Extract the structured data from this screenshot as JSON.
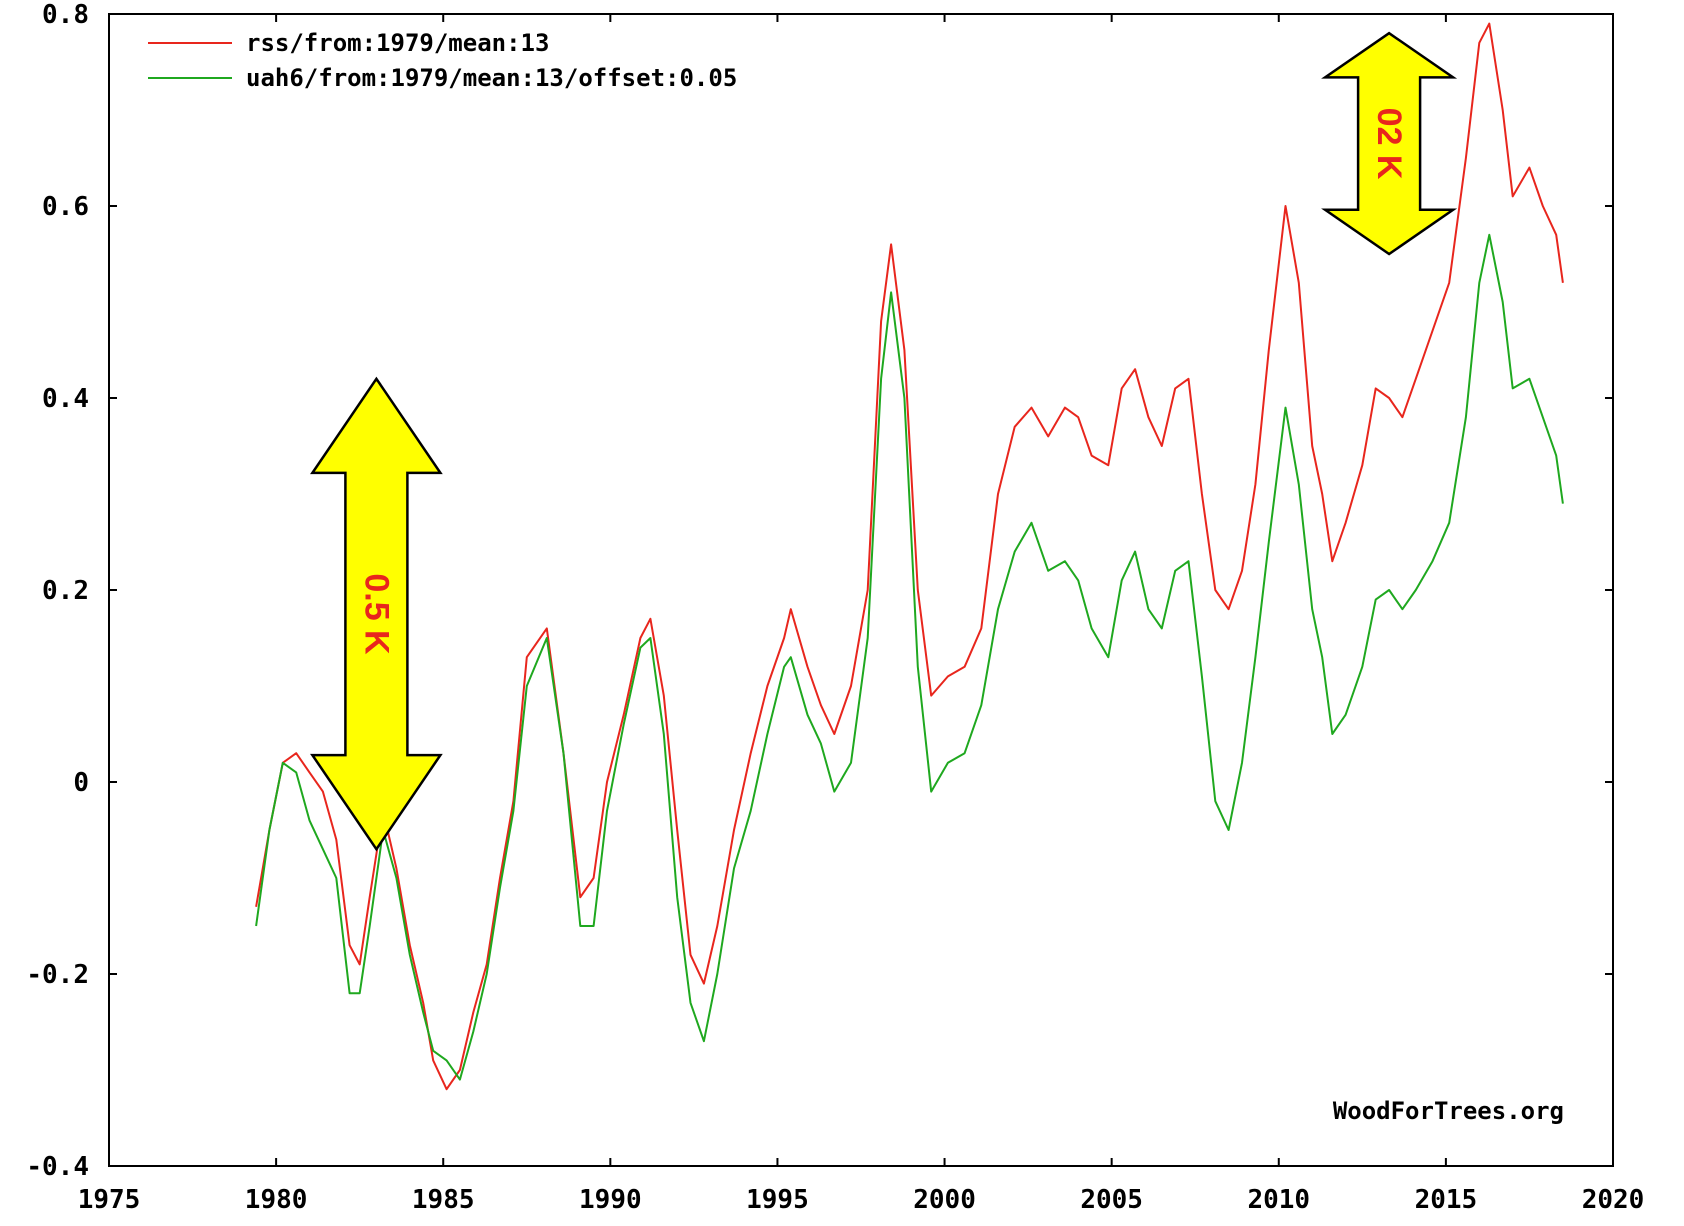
{
  "chart_data": {
    "type": "line",
    "xlim": [
      1975,
      2020
    ],
    "ylim": [
      -0.4,
      0.8
    ],
    "x_ticks": [
      "1975",
      "1980",
      "1985",
      "1990",
      "1995",
      "2000",
      "2005",
      "2010",
      "2015",
      "2020"
    ],
    "y_ticks": [
      "0.8",
      "0.6",
      "0.4",
      "0.2",
      "0",
      "-0.2",
      "-0.4"
    ],
    "legend_position": "top-left",
    "series": [
      {
        "name": "rss/from:1979/mean:13",
        "color": "#e8261d",
        "points": [
          [
            1979.4,
            -0.13
          ],
          [
            1979.8,
            -0.05
          ],
          [
            1980.2,
            0.02
          ],
          [
            1980.6,
            0.03
          ],
          [
            1981.0,
            0.01
          ],
          [
            1981.4,
            -0.01
          ],
          [
            1981.8,
            -0.06
          ],
          [
            1982.2,
            -0.17
          ],
          [
            1982.5,
            -0.19
          ],
          [
            1982.8,
            -0.12
          ],
          [
            1983.2,
            -0.03
          ],
          [
            1983.6,
            -0.09
          ],
          [
            1984.0,
            -0.17
          ],
          [
            1984.4,
            -0.23
          ],
          [
            1984.7,
            -0.29
          ],
          [
            1985.1,
            -0.32
          ],
          [
            1985.5,
            -0.3
          ],
          [
            1985.9,
            -0.24
          ],
          [
            1986.3,
            -0.19
          ],
          [
            1986.7,
            -0.1
          ],
          [
            1987.1,
            -0.02
          ],
          [
            1987.5,
            0.13
          ],
          [
            1988.1,
            0.16
          ],
          [
            1988.6,
            0.03
          ],
          [
            1989.1,
            -0.12
          ],
          [
            1989.5,
            -0.1
          ],
          [
            1989.9,
            0.0
          ],
          [
            1990.4,
            0.07
          ],
          [
            1990.9,
            0.15
          ],
          [
            1991.2,
            0.17
          ],
          [
            1991.6,
            0.09
          ],
          [
            1992.0,
            -0.05
          ],
          [
            1992.4,
            -0.18
          ],
          [
            1992.8,
            -0.21
          ],
          [
            1993.2,
            -0.15
          ],
          [
            1993.7,
            -0.05
          ],
          [
            1994.2,
            0.03
          ],
          [
            1994.7,
            0.1
          ],
          [
            1995.2,
            0.15
          ],
          [
            1995.4,
            0.18
          ],
          [
            1995.9,
            0.12
          ],
          [
            1996.3,
            0.08
          ],
          [
            1996.7,
            0.05
          ],
          [
            1997.2,
            0.1
          ],
          [
            1997.7,
            0.2
          ],
          [
            1998.1,
            0.48
          ],
          [
            1998.4,
            0.56
          ],
          [
            1998.8,
            0.45
          ],
          [
            1999.2,
            0.2
          ],
          [
            1999.6,
            0.09
          ],
          [
            2000.1,
            0.11
          ],
          [
            2000.6,
            0.12
          ],
          [
            2001.1,
            0.16
          ],
          [
            2001.6,
            0.3
          ],
          [
            2002.1,
            0.37
          ],
          [
            2002.6,
            0.39
          ],
          [
            2003.1,
            0.36
          ],
          [
            2003.6,
            0.39
          ],
          [
            2004.0,
            0.38
          ],
          [
            2004.4,
            0.34
          ],
          [
            2004.9,
            0.33
          ],
          [
            2005.3,
            0.41
          ],
          [
            2005.7,
            0.43
          ],
          [
            2006.1,
            0.38
          ],
          [
            2006.5,
            0.35
          ],
          [
            2006.9,
            0.41
          ],
          [
            2007.3,
            0.42
          ],
          [
            2007.7,
            0.3
          ],
          [
            2008.1,
            0.2
          ],
          [
            2008.5,
            0.18
          ],
          [
            2008.9,
            0.22
          ],
          [
            2009.3,
            0.31
          ],
          [
            2009.7,
            0.45
          ],
          [
            2010.2,
            0.6
          ],
          [
            2010.6,
            0.52
          ],
          [
            2011.0,
            0.35
          ],
          [
            2011.3,
            0.3
          ],
          [
            2011.6,
            0.23
          ],
          [
            2012.0,
            0.27
          ],
          [
            2012.5,
            0.33
          ],
          [
            2012.9,
            0.41
          ],
          [
            2013.3,
            0.4
          ],
          [
            2013.7,
            0.38
          ],
          [
            2014.1,
            0.42
          ],
          [
            2014.6,
            0.47
          ],
          [
            2015.1,
            0.52
          ],
          [
            2015.6,
            0.65
          ],
          [
            2016.0,
            0.77
          ],
          [
            2016.3,
            0.79
          ],
          [
            2016.7,
            0.7
          ],
          [
            2017.0,
            0.61
          ],
          [
            2017.5,
            0.64
          ],
          [
            2017.9,
            0.6
          ],
          [
            2018.3,
            0.57
          ],
          [
            2018.5,
            0.52
          ]
        ]
      },
      {
        "name": "uah6/from:1979/mean:13/offset:0.05",
        "color": "#1fa81f",
        "points": [
          [
            1979.4,
            -0.15
          ],
          [
            1979.8,
            -0.05
          ],
          [
            1980.2,
            0.02
          ],
          [
            1980.6,
            0.01
          ],
          [
            1981.0,
            -0.04
          ],
          [
            1981.4,
            -0.07
          ],
          [
            1981.8,
            -0.1
          ],
          [
            1982.2,
            -0.22
          ],
          [
            1982.5,
            -0.22
          ],
          [
            1982.8,
            -0.15
          ],
          [
            1983.2,
            -0.05
          ],
          [
            1983.6,
            -0.1
          ],
          [
            1984.0,
            -0.18
          ],
          [
            1984.4,
            -0.24
          ],
          [
            1984.7,
            -0.28
          ],
          [
            1985.1,
            -0.29
          ],
          [
            1985.5,
            -0.31
          ],
          [
            1985.9,
            -0.26
          ],
          [
            1986.3,
            -0.2
          ],
          [
            1986.7,
            -0.11
          ],
          [
            1987.1,
            -0.03
          ],
          [
            1987.5,
            0.1
          ],
          [
            1988.1,
            0.15
          ],
          [
            1988.6,
            0.03
          ],
          [
            1989.1,
            -0.15
          ],
          [
            1989.5,
            -0.15
          ],
          [
            1989.9,
            -0.03
          ],
          [
            1990.4,
            0.06
          ],
          [
            1990.9,
            0.14
          ],
          [
            1991.2,
            0.15
          ],
          [
            1991.6,
            0.05
          ],
          [
            1992.0,
            -0.12
          ],
          [
            1992.4,
            -0.23
          ],
          [
            1992.8,
            -0.27
          ],
          [
            1993.2,
            -0.2
          ],
          [
            1993.7,
            -0.09
          ],
          [
            1994.2,
            -0.03
          ],
          [
            1994.7,
            0.05
          ],
          [
            1995.2,
            0.12
          ],
          [
            1995.4,
            0.13
          ],
          [
            1995.9,
            0.07
          ],
          [
            1996.3,
            0.04
          ],
          [
            1996.7,
            -0.01
          ],
          [
            1997.2,
            0.02
          ],
          [
            1997.7,
            0.15
          ],
          [
            1998.1,
            0.42
          ],
          [
            1998.4,
            0.51
          ],
          [
            1998.8,
            0.4
          ],
          [
            1999.2,
            0.12
          ],
          [
            1999.6,
            -0.01
          ],
          [
            2000.1,
            0.02
          ],
          [
            2000.6,
            0.03
          ],
          [
            2001.1,
            0.08
          ],
          [
            2001.6,
            0.18
          ],
          [
            2002.1,
            0.24
          ],
          [
            2002.6,
            0.27
          ],
          [
            2003.1,
            0.22
          ],
          [
            2003.6,
            0.23
          ],
          [
            2004.0,
            0.21
          ],
          [
            2004.4,
            0.16
          ],
          [
            2004.9,
            0.13
          ],
          [
            2005.3,
            0.21
          ],
          [
            2005.7,
            0.24
          ],
          [
            2006.1,
            0.18
          ],
          [
            2006.5,
            0.16
          ],
          [
            2006.9,
            0.22
          ],
          [
            2007.3,
            0.23
          ],
          [
            2007.7,
            0.11
          ],
          [
            2008.1,
            -0.02
          ],
          [
            2008.5,
            -0.05
          ],
          [
            2008.9,
            0.02
          ],
          [
            2009.3,
            0.13
          ],
          [
            2009.7,
            0.25
          ],
          [
            2010.2,
            0.39
          ],
          [
            2010.6,
            0.31
          ],
          [
            2011.0,
            0.18
          ],
          [
            2011.3,
            0.13
          ],
          [
            2011.6,
            0.05
          ],
          [
            2012.0,
            0.07
          ],
          [
            2012.5,
            0.12
          ],
          [
            2012.9,
            0.19
          ],
          [
            2013.3,
            0.2
          ],
          [
            2013.7,
            0.18
          ],
          [
            2014.1,
            0.2
          ],
          [
            2014.6,
            0.23
          ],
          [
            2015.1,
            0.27
          ],
          [
            2015.6,
            0.38
          ],
          [
            2016.0,
            0.52
          ],
          [
            2016.3,
            0.57
          ],
          [
            2016.7,
            0.5
          ],
          [
            2017.0,
            0.41
          ],
          [
            2017.5,
            0.42
          ],
          [
            2017.9,
            0.38
          ],
          [
            2018.3,
            0.34
          ],
          [
            2018.5,
            0.29
          ]
        ]
      }
    ],
    "annotations": [
      {
        "text": "0.5 K",
        "x": 1983.0,
        "y_top": 0.42,
        "y_bottom": -0.07,
        "fill": "#ffff00"
      },
      {
        "text": "02 K",
        "x": 2013.3,
        "y_top": 0.78,
        "y_bottom": 0.55,
        "fill": "#ffff00"
      }
    ],
    "watermark": "WoodForTrees.org"
  }
}
